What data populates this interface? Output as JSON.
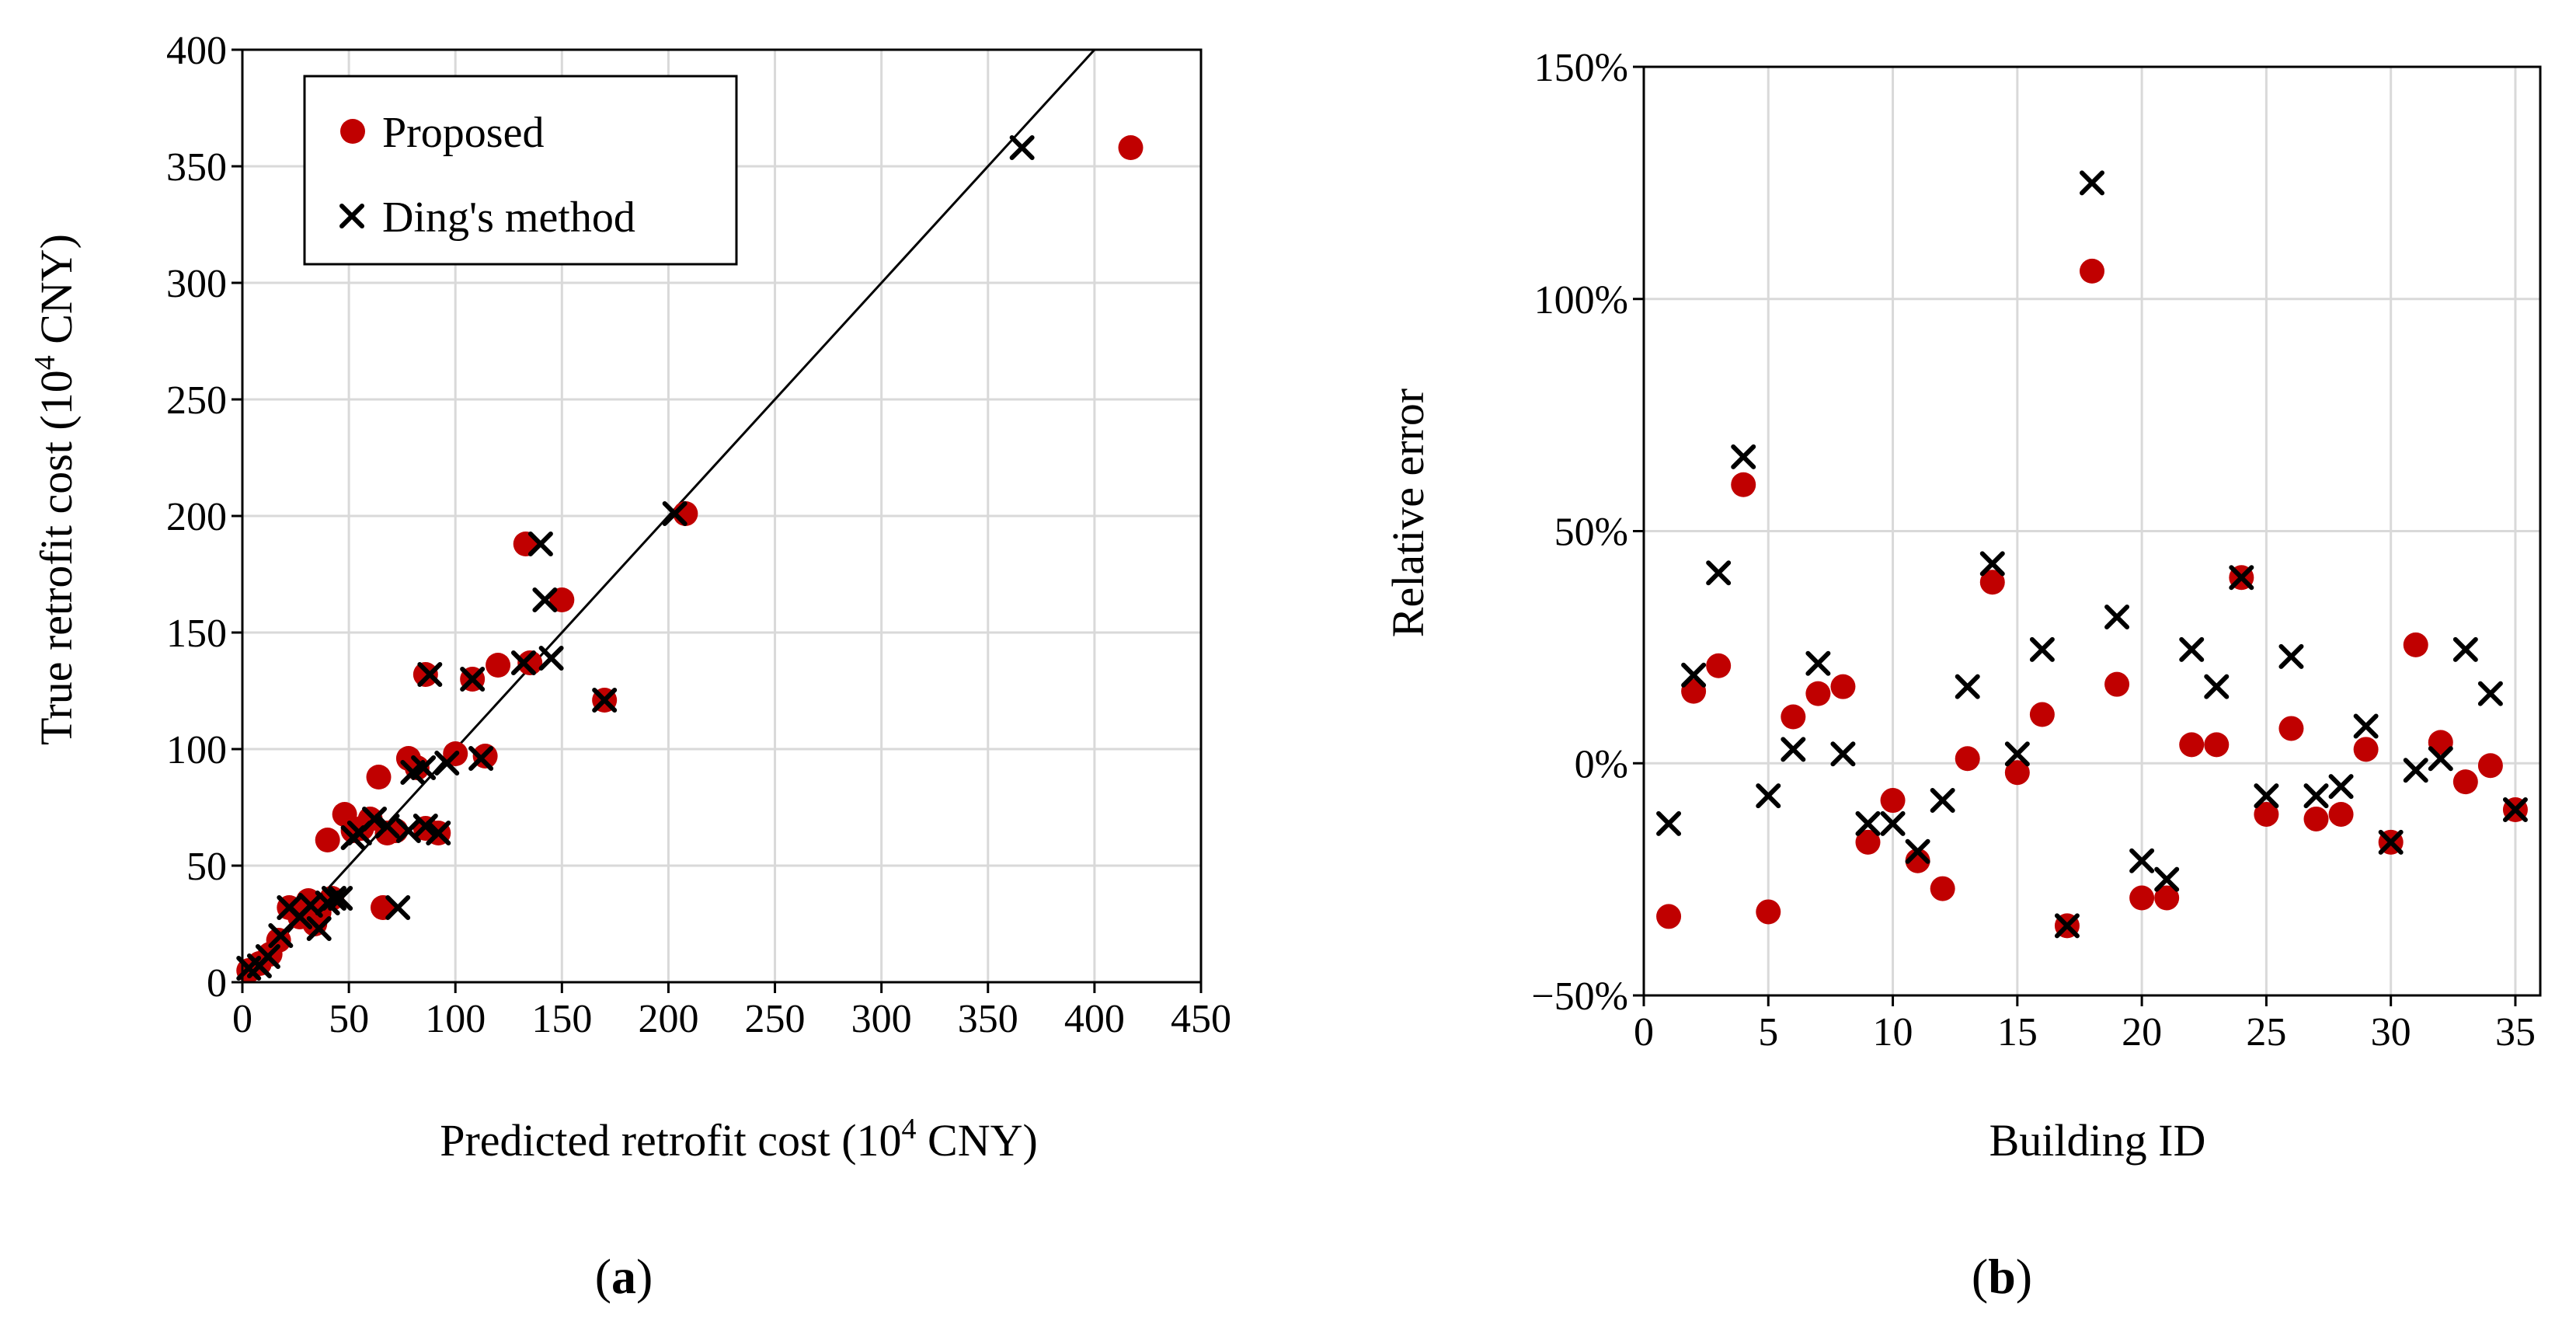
{
  "chart_data": [
    {
      "type": "scatter",
      "panel_label": [
        "(",
        "a",
        ")"
      ],
      "xlabel": {
        "pre": "Predicted retrofit cost (10",
        "sup": "4",
        "post": " CNY)"
      },
      "ylabel": {
        "pre": "True retrofit cost (10",
        "sup": "4",
        "post": " CNY)"
      },
      "xlim": [
        0,
        450
      ],
      "ylim": [
        0,
        400
      ],
      "x_ticks": [
        0,
        50,
        100,
        150,
        200,
        250,
        300,
        350,
        400,
        450
      ],
      "y_ticks": [
        0,
        50,
        100,
        150,
        200,
        250,
        300,
        350,
        400
      ],
      "x_tick_labels": [
        "0",
        "50",
        "100",
        "150",
        "200",
        "250",
        "300",
        "350",
        "400",
        "450"
      ],
      "y_tick_labels": [
        "0",
        "50",
        "100",
        "150",
        "200",
        "250",
        "300",
        "350",
        "400"
      ],
      "grid": true,
      "reference_line": "y = x",
      "legend_position": "top-left",
      "series": [
        {
          "name": "Proposed",
          "marker": "circle",
          "color": "#C00000",
          "points": [
            [
              3,
              5
            ],
            [
              8,
              8
            ],
            [
              13,
              12
            ],
            [
              17,
              18
            ],
            [
              22,
              32
            ],
            [
              27,
              28
            ],
            [
              31,
              35
            ],
            [
              34,
              25
            ],
            [
              36,
              30
            ],
            [
              40,
              61
            ],
            [
              42,
              36
            ],
            [
              48,
              72
            ],
            [
              52,
              65
            ],
            [
              56,
              66
            ],
            [
              60,
              70
            ],
            [
              64,
              88
            ],
            [
              66,
              32
            ],
            [
              68,
              64
            ],
            [
              72,
              65
            ],
            [
              78,
              96
            ],
            [
              82,
              92
            ],
            [
              86,
              66
            ],
            [
              86,
              132
            ],
            [
              92,
              64
            ],
            [
              100,
              98
            ],
            [
              108,
              130
            ],
            [
              114,
              97
            ],
            [
              120,
              136
            ],
            [
              133,
              188
            ],
            [
              135,
              137
            ],
            [
              150,
              164
            ],
            [
              170,
              121
            ],
            [
              208,
              201
            ],
            [
              417,
              358
            ]
          ]
        },
        {
          "name": "Ding's method",
          "marker": "x",
          "color": "#000000",
          "points": [
            [
              3,
              6
            ],
            [
              8,
              7
            ],
            [
              12,
              11
            ],
            [
              18,
              20
            ],
            [
              22,
              32
            ],
            [
              27,
              28
            ],
            [
              32,
              33
            ],
            [
              36,
              23
            ],
            [
              40,
              34
            ],
            [
              43,
              36
            ],
            [
              46,
              36
            ],
            [
              52,
              62
            ],
            [
              55,
              64
            ],
            [
              62,
              70
            ],
            [
              68,
              67
            ],
            [
              73,
              32
            ],
            [
              78,
              65
            ],
            [
              80,
              90
            ],
            [
              85,
              92
            ],
            [
              86,
              67
            ],
            [
              88,
              132
            ],
            [
              92,
              64
            ],
            [
              96,
              94
            ],
            [
              108,
              130
            ],
            [
              112,
              96
            ],
            [
              132,
              137
            ],
            [
              140,
              188
            ],
            [
              142,
              164
            ],
            [
              145,
              139
            ],
            [
              170,
              121
            ],
            [
              203,
              201
            ],
            [
              366,
              358
            ]
          ]
        }
      ]
    },
    {
      "type": "scatter",
      "panel_label": [
        "(",
        "b",
        ")"
      ],
      "xlabel": "Building ID",
      "ylabel": "Relative error",
      "xlim": [
        0,
        36
      ],
      "ylim": [
        -50,
        150
      ],
      "x_ticks": [
        0,
        5,
        10,
        15,
        20,
        25,
        30,
        35
      ],
      "y_ticks": [
        -50,
        0,
        50,
        100,
        150
      ],
      "x_tick_labels": [
        "0",
        "5",
        "10",
        "15",
        "20",
        "25",
        "30",
        "35"
      ],
      "y_tick_labels": [
        "−50%",
        "0%",
        "50%",
        "100%",
        "150%"
      ],
      "grid": true,
      "series": [
        {
          "name": "Proposed",
          "marker": "circle",
          "color": "#C00000",
          "points": [
            [
              1,
              -33
            ],
            [
              2,
              15.5
            ],
            [
              3,
              21
            ],
            [
              4,
              60
            ],
            [
              5,
              -32
            ],
            [
              6,
              10
            ],
            [
              7,
              15
            ],
            [
              8,
              16.5
            ],
            [
              9,
              -17
            ],
            [
              10,
              -8
            ],
            [
              11,
              -21
            ],
            [
              12,
              -27
            ],
            [
              13,
              1
            ],
            [
              14,
              39
            ],
            [
              15,
              -2
            ],
            [
              16,
              10.5
            ],
            [
              17,
              -35
            ],
            [
              18,
              106
            ],
            [
              19,
              17
            ],
            [
              20,
              -29
            ],
            [
              21,
              -29
            ],
            [
              22,
              4
            ],
            [
              23,
              4
            ],
            [
              24,
              40
            ],
            [
              25,
              -11
            ],
            [
              26,
              7.5
            ],
            [
              27,
              -12
            ],
            [
              28,
              -11
            ],
            [
              29,
              3
            ],
            [
              30,
              -17
            ],
            [
              31,
              25.5
            ],
            [
              32,
              4.5
            ],
            [
              33,
              -4
            ],
            [
              34,
              -0.5
            ],
            [
              35,
              -10
            ]
          ]
        },
        {
          "name": "Ding's method",
          "marker": "x",
          "color": "#000000",
          "points": [
            [
              1,
              -13
            ],
            [
              2,
              19
            ],
            [
              3,
              41
            ],
            [
              4,
              66
            ],
            [
              5,
              -7
            ],
            [
              6,
              3
            ],
            [
              7,
              21.5
            ],
            [
              8,
              2
            ],
            [
              9,
              -13
            ],
            [
              10,
              -13
            ],
            [
              11,
              -19
            ],
            [
              12,
              -8
            ],
            [
              13,
              16.5
            ],
            [
              14,
              43
            ],
            [
              15,
              2
            ],
            [
              16,
              24.5
            ],
            [
              17,
              -35
            ],
            [
              18,
              125
            ],
            [
              19,
              31.5
            ],
            [
              20,
              -21
            ],
            [
              21,
              -25
            ],
            [
              22,
              24.5
            ],
            [
              23,
              16.5
            ],
            [
              24,
              40
            ],
            [
              25,
              -7
            ],
            [
              26,
              23
            ],
            [
              27,
              -7
            ],
            [
              28,
              -5
            ],
            [
              29,
              8
            ],
            [
              30,
              -17
            ],
            [
              31,
              -1.5
            ],
            [
              32,
              1
            ],
            [
              33,
              24.5
            ],
            [
              34,
              15
            ],
            [
              35,
              -10
            ]
          ]
        }
      ]
    }
  ]
}
